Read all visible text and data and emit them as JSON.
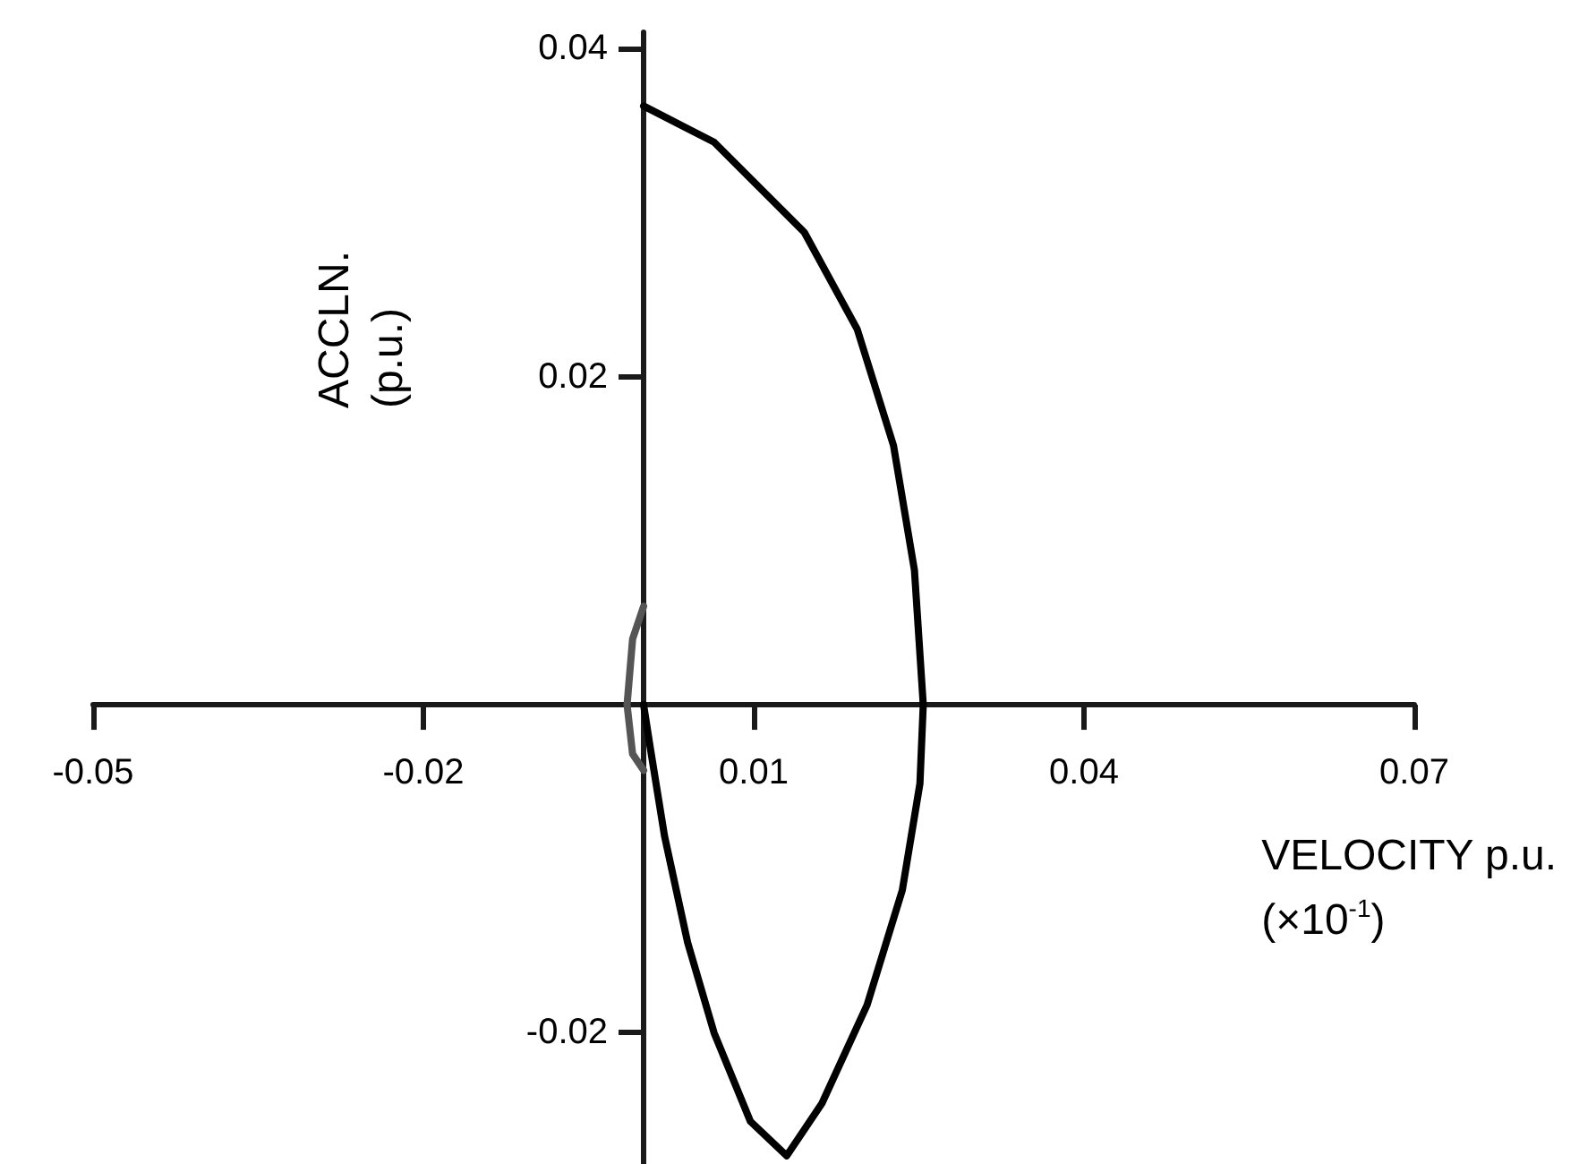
{
  "chart_data": {
    "type": "line",
    "xlabel": "VELOCITY p.u.\n(×10$^{-1}$)",
    "ylabel": "ACCLN.\n(p.u.)",
    "xlim": [
      -0.05,
      0.07
    ],
    "ylim": [
      -0.028,
      0.041
    ],
    "xticks": [
      -0.05,
      -0.02,
      0.01,
      0.04,
      0.07
    ],
    "yticks": [
      -0.02,
      0.02,
      0.04
    ],
    "grid": false,
    "marker": "none",
    "line_style": "solid",
    "series": [
      {
        "color": "#000000",
        "x": [
          0,
          0.0064,
          0.0146,
          0.0194,
          0.0227,
          0.0246,
          0.0254,
          0.0251,
          0.0235,
          0.0203,
          0.0162,
          0.013,
          0.0097,
          0.0064,
          0.004,
          0.0019,
          0.0006,
          0
        ],
        "values": [
          0.0365,
          0.0343,
          0.0288,
          0.0229,
          0.0158,
          0.0082,
          0,
          -0.0048,
          -0.0113,
          -0.0183,
          -0.0243,
          -0.0275,
          -0.0254,
          -0.02,
          -0.0145,
          -0.008,
          -0.0026,
          0
        ]
      },
      {
        "color": "#555555",
        "x": [
          0,
          -0.001,
          -0.0015,
          -0.001,
          0
        ],
        "values": [
          0.006,
          0.004,
          0,
          -0.003,
          -0.004
        ]
      }
    ]
  }
}
